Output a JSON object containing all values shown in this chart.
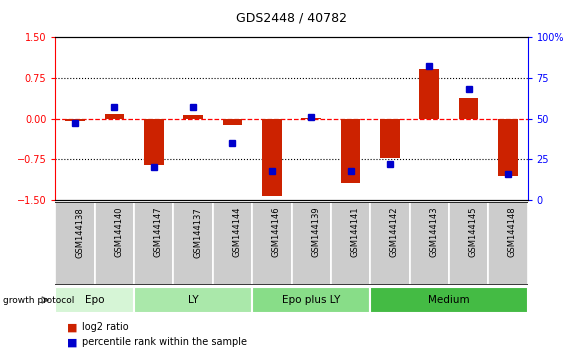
{
  "title": "GDS2448 / 40782",
  "samples": [
    "GSM144138",
    "GSM144140",
    "GSM144147",
    "GSM144137",
    "GSM144144",
    "GSM144146",
    "GSM144139",
    "GSM144141",
    "GSM144142",
    "GSM144143",
    "GSM144145",
    "GSM144148"
  ],
  "log2_ratio": [
    -0.04,
    0.08,
    -0.85,
    0.07,
    -0.12,
    -1.42,
    0.02,
    -1.18,
    -0.72,
    0.92,
    0.38,
    -1.05
  ],
  "percentile_rank": [
    47,
    57,
    20,
    57,
    35,
    18,
    51,
    18,
    22,
    82,
    68,
    16
  ],
  "groups": [
    {
      "label": "Epo",
      "start": 0,
      "end": 2,
      "color": "#d6f5d6"
    },
    {
      "label": "LY",
      "start": 2,
      "end": 5,
      "color": "#aae8aa"
    },
    {
      "label": "Epo plus LY",
      "start": 5,
      "end": 8,
      "color": "#88dd88"
    },
    {
      "label": "Medium",
      "start": 8,
      "end": 12,
      "color": "#44bb44"
    }
  ],
  "bar_color": "#cc2200",
  "dot_color": "#0000cc",
  "ylim_left": [
    -1.5,
    1.5
  ],
  "ylim_right": [
    0,
    100
  ],
  "yticks_left": [
    -1.5,
    -0.75,
    0.0,
    0.75,
    1.5
  ],
  "yticks_right": [
    0,
    25,
    50,
    75,
    100
  ],
  "hlines_dotted": [
    -0.75,
    0.75
  ],
  "hline_red_dashed": 0.0,
  "background_color": "#ffffff",
  "label_bg": "#cccccc",
  "label_sep_color": "#ffffff",
  "group_border_color": "#ffffff",
  "bar_width": 0.5,
  "dot_size": 4,
  "title_fontsize": 9,
  "tick_fontsize": 7,
  "label_fontsize": 6,
  "group_fontsize": 7.5
}
